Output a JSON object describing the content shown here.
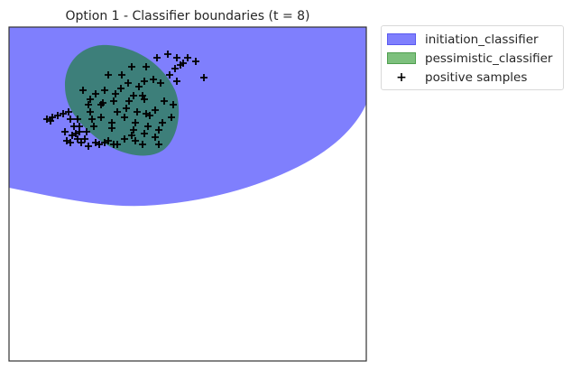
{
  "chart_data": {
    "type": "scatter",
    "title": "Option 1 - Classifier boundaries (t = 8)",
    "xlabel": "",
    "ylabel": "",
    "grid": false,
    "axis_ticks": false,
    "legend_placement": "outside-top-right",
    "colors": {
      "initiation_classifier": "#7f7ffd",
      "pessimistic_classifier": "#3d7f7a",
      "pessimistic_legend": "#7dc07d",
      "samples": "#000000",
      "frame": "#333333"
    },
    "series": [
      {
        "name": "initiation_classifier",
        "kind": "region"
      },
      {
        "name": "pessimistic_classifier",
        "kind": "region"
      },
      {
        "name": "positive samples",
        "kind": "points",
        "marker": "+"
      }
    ]
  },
  "legend": {
    "items": [
      {
        "label": "initiation_classifier",
        "marker": "patch",
        "color": "#7f7ffd",
        "edge": "#5a5af0"
      },
      {
        "label": "pessimistic_classifier",
        "marker": "patch",
        "color": "#7dc07d",
        "edge": "#4f9f4f"
      },
      {
        "label": "positive samples",
        "marker": "+",
        "glyph": "+"
      }
    ]
  }
}
